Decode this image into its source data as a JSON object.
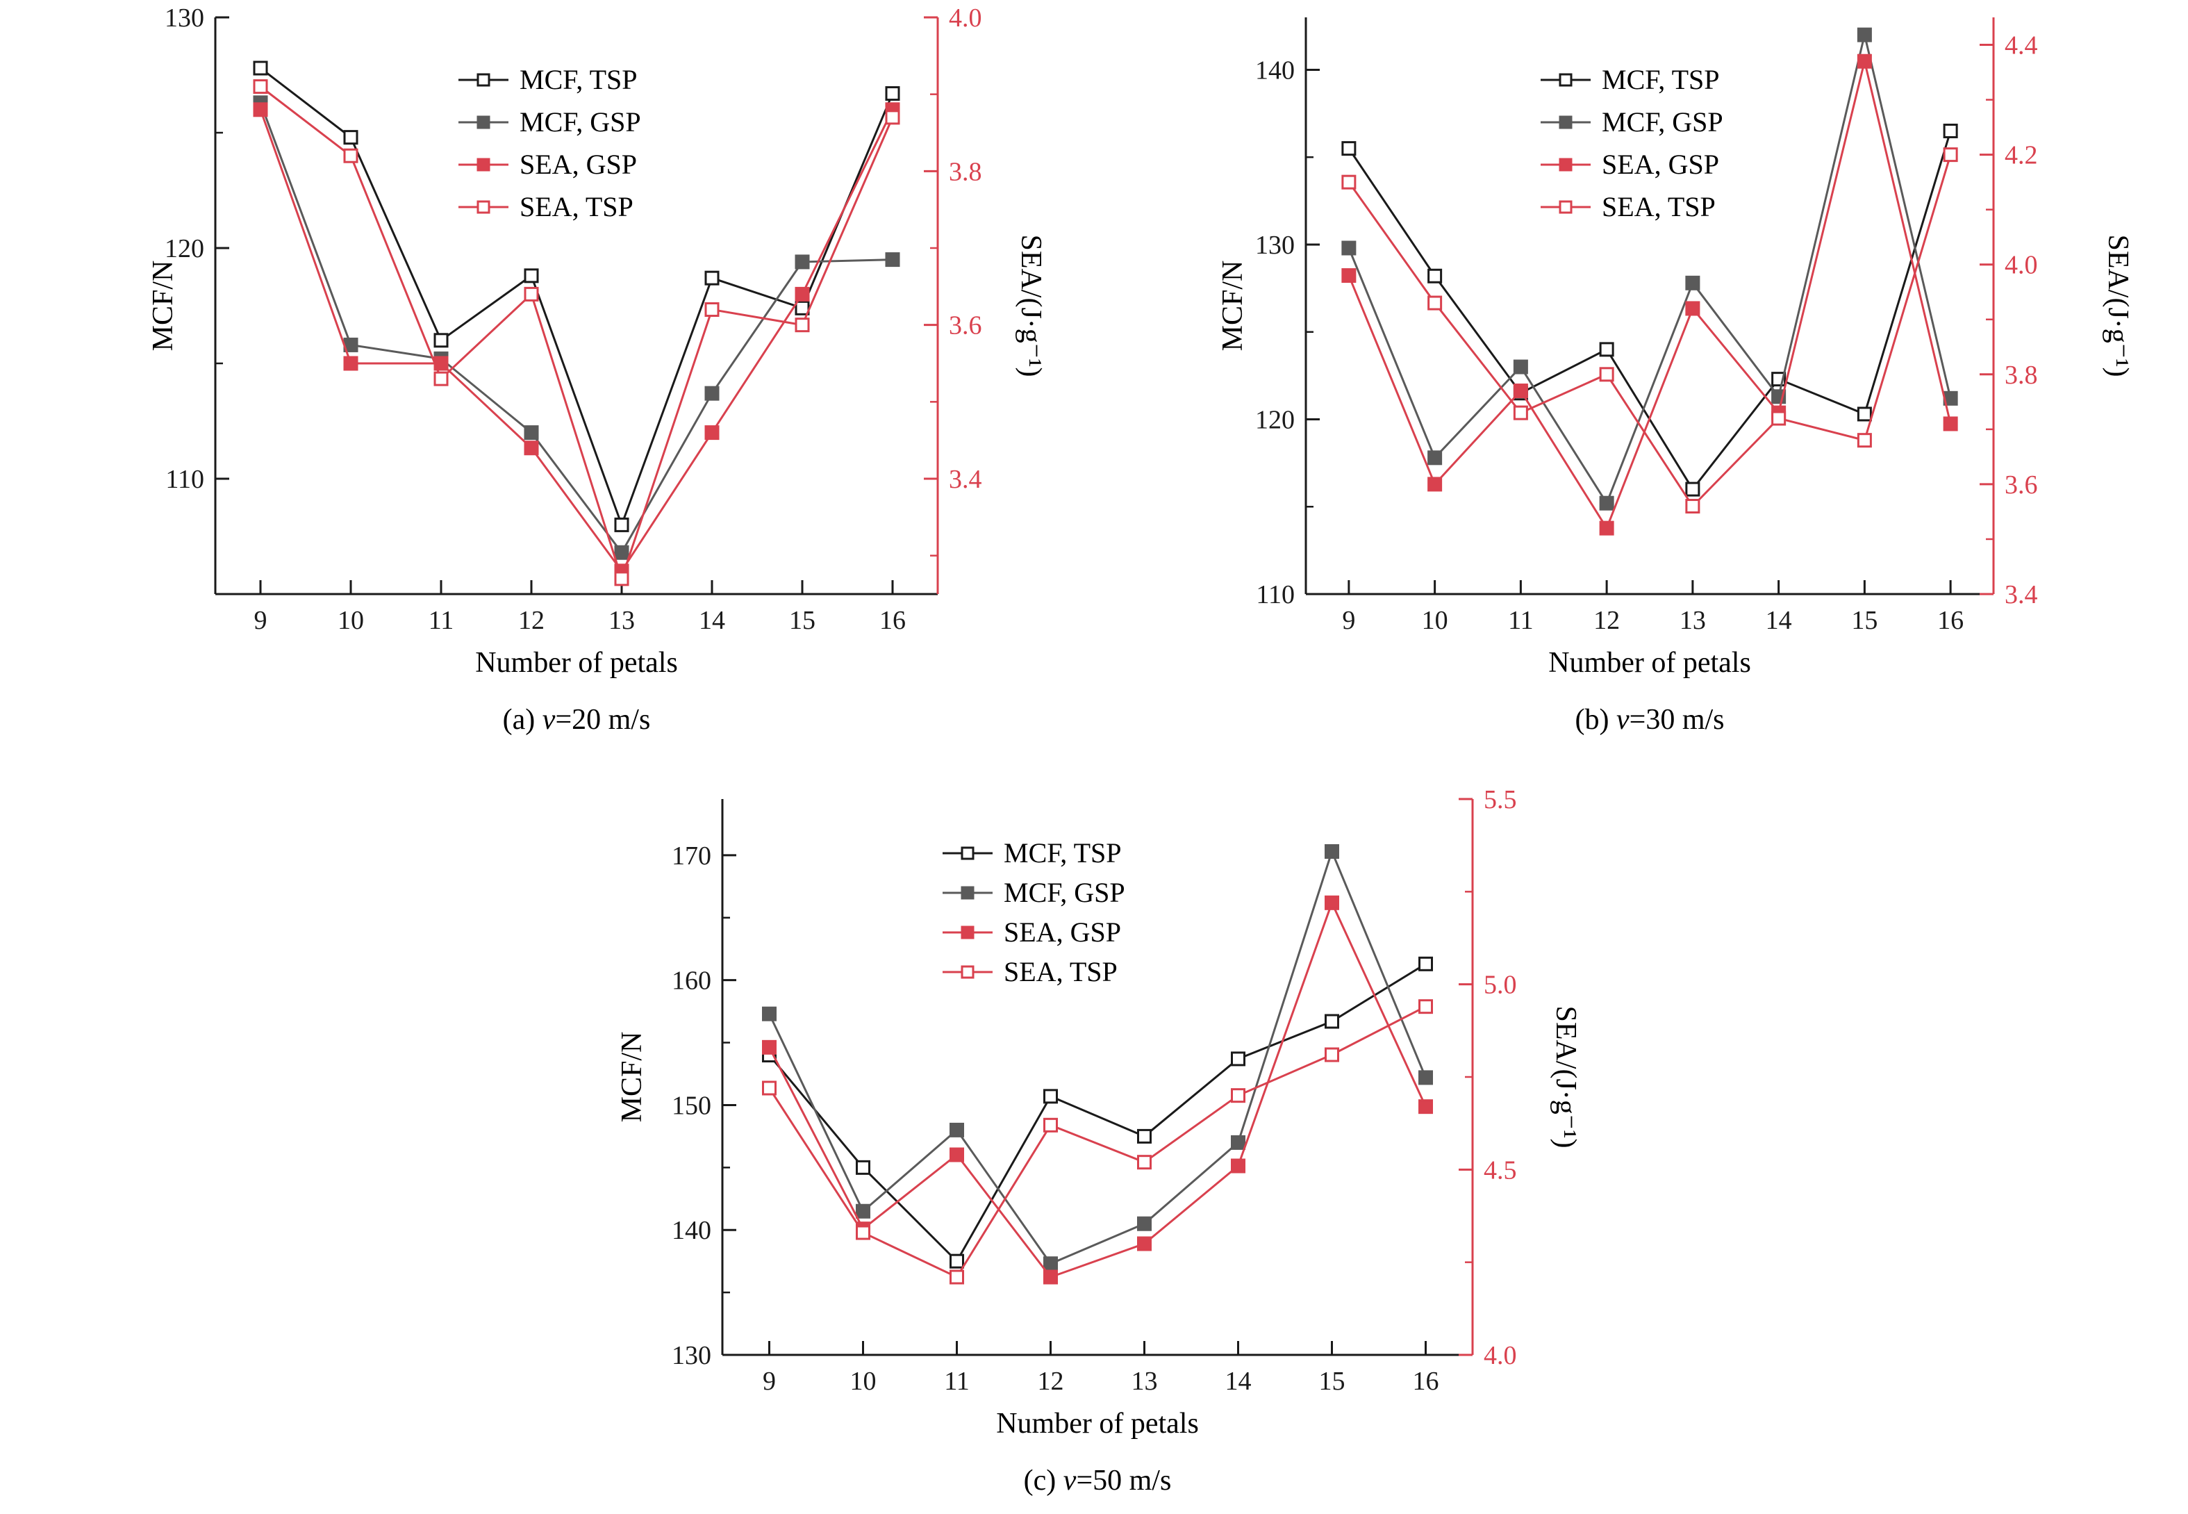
{
  "chart_data": [
    {
      "id": "a",
      "type": "line",
      "caption_prefix": "(a) ",
      "caption_var": "v",
      "caption_rest": "=20 m/s",
      "xlabel": "Number of petals",
      "ylabel_left": "MCF/N",
      "ylabel_right": "SEA/(J·g⁻¹)",
      "x": [
        9,
        10,
        11,
        12,
        13,
        14,
        15,
        16
      ],
      "left_axis": {
        "range": [
          105,
          130
        ],
        "ticks": [
          110,
          120,
          130
        ],
        "tick_labels": [
          "110",
          "120",
          "130"
        ],
        "color": "#1a1a1a"
      },
      "right_axis": {
        "range": [
          3.25,
          4.0
        ],
        "ticks": [
          3.4,
          3.6,
          3.8,
          4.0
        ],
        "tick_labels": [
          "3.4",
          "3.6",
          "3.8",
          "4.0"
        ],
        "color": "#d9414e"
      },
      "series": [
        {
          "name": "MCF, TSP",
          "axis": "left",
          "marker": "open",
          "color": "#1a1a1a",
          "values": [
            127.8,
            124.8,
            116.0,
            118.8,
            108.0,
            118.7,
            117.4,
            126.7
          ]
        },
        {
          "name": "MCF, GSP",
          "axis": "left",
          "marker": "filled",
          "color": "#5a5a5a",
          "values": [
            126.3,
            115.8,
            115.2,
            112.0,
            106.8,
            113.7,
            119.4,
            119.5
          ]
        },
        {
          "name": "SEA, GSP",
          "axis": "right",
          "marker": "filled",
          "color": "#d9414e",
          "values": [
            3.88,
            3.55,
            3.55,
            3.44,
            3.28,
            3.46,
            3.64,
            3.88
          ]
        },
        {
          "name": "SEA, TSP",
          "axis": "right",
          "marker": "open",
          "color": "#d9414e",
          "values": [
            3.91,
            3.82,
            3.53,
            3.64,
            3.27,
            3.62,
            3.6,
            3.87
          ]
        }
      ]
    },
    {
      "id": "b",
      "type": "line",
      "caption_prefix": "(b) ",
      "caption_var": "v",
      "caption_rest": "=30 m/s",
      "xlabel": "Number of petals",
      "ylabel_left": "MCF/N",
      "ylabel_right": "SEA/(J·g⁻¹)",
      "x": [
        9,
        10,
        11,
        12,
        13,
        14,
        15,
        16
      ],
      "left_axis": {
        "range": [
          110,
          143
        ],
        "ticks": [
          110,
          120,
          130,
          140
        ],
        "tick_labels": [
          "110",
          "120",
          "130",
          "140"
        ],
        "color": "#1a1a1a"
      },
      "right_axis": {
        "range": [
          3.4,
          4.45
        ],
        "ticks": [
          3.4,
          3.6,
          3.8,
          4.0,
          4.2,
          4.4
        ],
        "tick_labels": [
          "3.4",
          "3.6",
          "3.8",
          "4.0",
          "4.2",
          "4.4"
        ],
        "color": "#d9414e"
      },
      "series": [
        {
          "name": "MCF, TSP",
          "axis": "left",
          "marker": "open",
          "color": "#1a1a1a",
          "values": [
            135.5,
            128.2,
            121.5,
            124.0,
            116.0,
            122.3,
            120.3,
            136.5
          ]
        },
        {
          "name": "MCF, GSP",
          "axis": "left",
          "marker": "filled",
          "color": "#5a5a5a",
          "values": [
            129.8,
            117.8,
            123.0,
            115.2,
            127.8,
            121.3,
            142.0,
            121.2
          ]
        },
        {
          "name": "SEA, GSP",
          "axis": "right",
          "marker": "filled",
          "color": "#d9414e",
          "values": [
            3.98,
            3.6,
            3.77,
            3.52,
            3.92,
            3.73,
            4.37,
            3.71
          ]
        },
        {
          "name": "SEA, TSP",
          "axis": "right",
          "marker": "open",
          "color": "#d9414e",
          "values": [
            4.15,
            3.93,
            3.73,
            3.8,
            3.56,
            3.72,
            3.68,
            4.2
          ]
        }
      ]
    },
    {
      "id": "c",
      "type": "line",
      "caption_prefix": "(c) ",
      "caption_var": "v",
      "caption_rest": "=50 m/s",
      "xlabel": "Number of petals",
      "ylabel_left": "MCF/N",
      "ylabel_right": "SEA/(J·g⁻¹)",
      "x": [
        9,
        10,
        11,
        12,
        13,
        14,
        15,
        16
      ],
      "left_axis": {
        "range": [
          130,
          174.5
        ],
        "ticks": [
          130,
          140,
          150,
          160,
          170
        ],
        "tick_labels": [
          "130",
          "140",
          "150",
          "160",
          "170"
        ],
        "color": "#1a1a1a"
      },
      "right_axis": {
        "range": [
          4.0,
          5.5
        ],
        "ticks": [
          4.0,
          4.5,
          5.0,
          5.5
        ],
        "tick_labels": [
          "4.0",
          "4.5",
          "5.0",
          "5.5"
        ],
        "color": "#d9414e"
      },
      "series": [
        {
          "name": "MCF, TSP",
          "axis": "left",
          "marker": "open",
          "color": "#1a1a1a",
          "values": [
            154.0,
            145.0,
            137.5,
            150.7,
            147.5,
            153.7,
            156.7,
            161.3
          ]
        },
        {
          "name": "MCF, GSP",
          "axis": "left",
          "marker": "filled",
          "color": "#5a5a5a",
          "values": [
            157.3,
            141.5,
            148.0,
            137.3,
            140.5,
            147.0,
            170.3,
            152.2
          ]
        },
        {
          "name": "SEA, GSP",
          "axis": "right",
          "marker": "filled",
          "color": "#d9414e",
          "values": [
            4.83,
            4.34,
            4.54,
            4.21,
            4.3,
            4.51,
            5.22,
            4.67
          ]
        },
        {
          "name": "SEA, TSP",
          "axis": "right",
          "marker": "open",
          "color": "#d9414e",
          "values": [
            4.72,
            4.33,
            4.21,
            4.62,
            4.52,
            4.7,
            4.81,
            4.94
          ]
        }
      ]
    }
  ]
}
